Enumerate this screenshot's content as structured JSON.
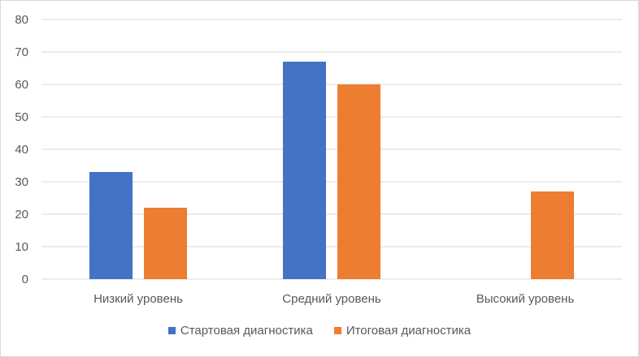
{
  "chart_data": {
    "type": "bar",
    "categories": [
      "Низкий уровень",
      "Средний уровень",
      "Высокий уровень"
    ],
    "series": [
      {
        "name": "Стартовая диагностика",
        "values": [
          33,
          67,
          0
        ],
        "color": "#4472c4"
      },
      {
        "name": "Итоговая диагностика",
        "values": [
          22,
          60,
          27
        ],
        "color": "#ed7d31"
      }
    ],
    "ylim": [
      0,
      80
    ],
    "yticks": [
      0,
      10,
      20,
      30,
      40,
      50,
      60,
      70,
      80
    ],
    "grid": true,
    "legend_position": "bottom"
  }
}
